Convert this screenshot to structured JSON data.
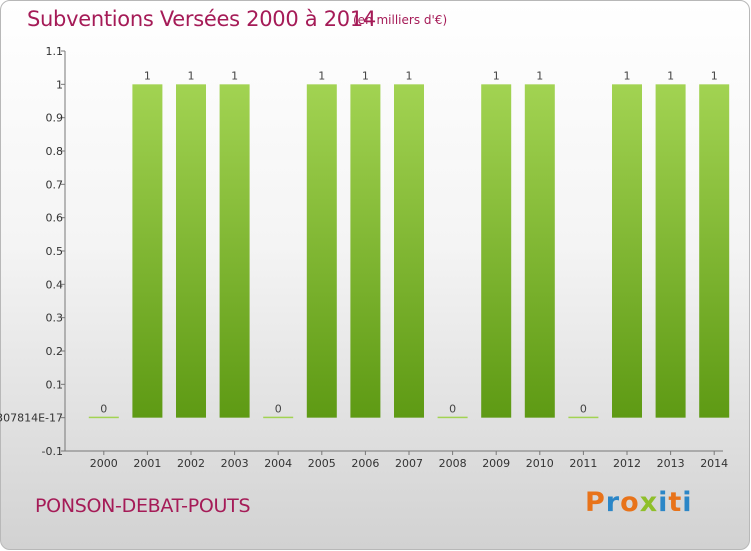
{
  "header": {
    "title": "Subventions Versées 2000 à 2014",
    "unit": "(en milliers d'€)"
  },
  "footer": {
    "commune": "PONSON-DEBAT-POUTS",
    "logo_text": "Proxiti"
  },
  "colors": {
    "title": "#a51b57",
    "bar_light": "#a2d352",
    "bar_dark": "#5e9a14",
    "logo": [
      "#e8731a",
      "#2b86c7",
      "#e8731a",
      "#8fbf2a",
      "#2b86c7",
      "#e8731a",
      "#2b86c7"
    ]
  },
  "chart_data": {
    "type": "bar",
    "title": "Subventions Versées 2000 à 2014",
    "unit": "(en milliers d'€)",
    "categories": [
      "2000",
      "2001",
      "2002",
      "2003",
      "2004",
      "2005",
      "2006",
      "2007",
      "2008",
      "2009",
      "2010",
      "2011",
      "2012",
      "2013",
      "2014"
    ],
    "values": [
      0,
      1,
      1,
      1,
      0,
      1,
      1,
      1,
      0,
      1,
      1,
      0,
      1,
      1,
      1
    ],
    "data_labels": [
      "0",
      "1",
      "1",
      "1",
      "0",
      "1",
      "1",
      "1",
      "0",
      "1",
      "1",
      "0",
      "1",
      "1",
      "1"
    ],
    "y_ticks": [
      -0.1,
      0,
      0.1,
      0.2,
      0.3,
      0.4,
      0.5,
      0.6,
      0.7,
      0.8,
      0.9,
      1,
      1.1
    ],
    "y_tick_labels": [
      "-0.1",
      "307814E-17",
      "0.1",
      "0.2",
      "0.3",
      "0.4",
      "0.5",
      "0.6",
      "0.7",
      "0.8",
      "0.9",
      "1",
      "1.1"
    ],
    "ylim": [
      -0.1,
      1.1
    ],
    "grid": false,
    "legend": "none"
  }
}
